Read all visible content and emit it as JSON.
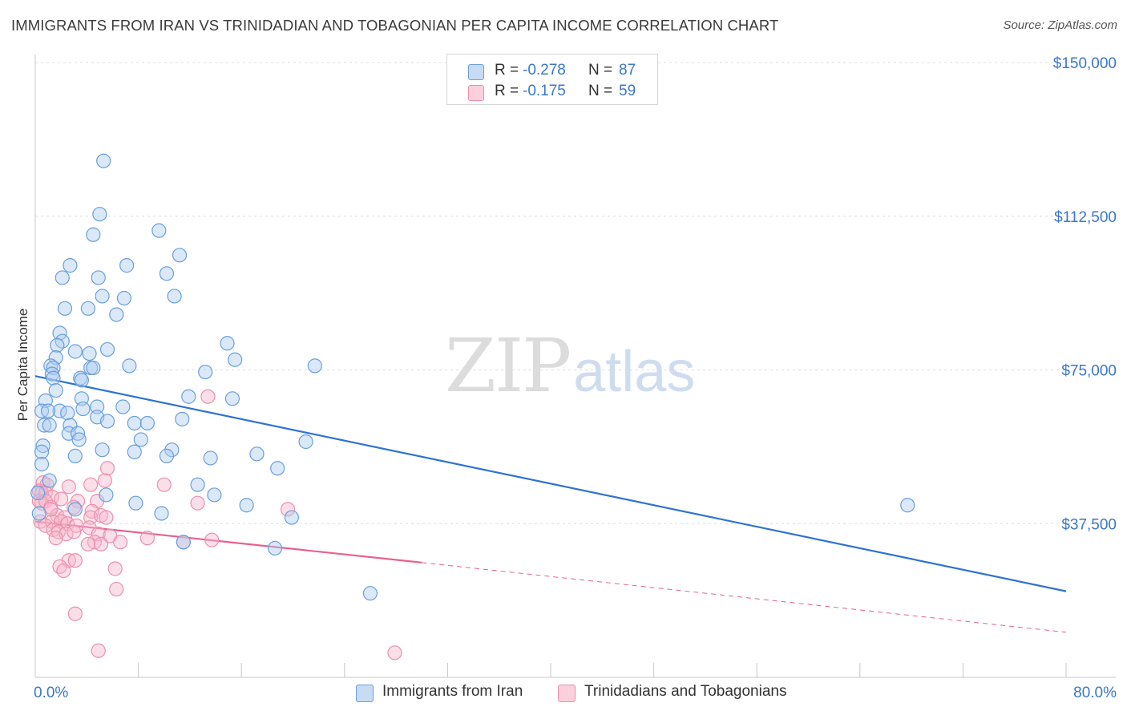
{
  "title": "IMMIGRANTS FROM IRAN VS TRINIDADIAN AND TOBAGONIAN PER CAPITA INCOME CORRELATION CHART",
  "source": "Source: ZipAtlas.com",
  "watermark": {
    "zip": "ZIP",
    "atlas": "atlas"
  },
  "legend": {
    "rows": [
      {
        "r_label": "R =",
        "r_value": "-0.278",
        "n_label": "N =",
        "n_value": "87",
        "color": "#aecbf0"
      },
      {
        "r_label": "R =",
        "r_value": "-0.175",
        "n_label": "N =",
        "n_value": "59",
        "color": "#f7b9cb"
      }
    ]
  },
  "bottom_legend": {
    "series1": "Immigrants from Iran",
    "series2": "Trinidadians and Tobagonians"
  },
  "colors": {
    "iran_fill": "#aecbf0",
    "iran_stroke": "#6a9fdc",
    "iran_line": "#2f72cf",
    "tt_fill": "#f7b9cb",
    "tt_stroke": "#ec8fad",
    "tt_line": "#e5628f",
    "axis_text": "#3b77c9"
  },
  "chart_data": {
    "type": "scatter",
    "title": "IMMIGRANTS FROM IRAN VS TRINIDADIAN AND TOBAGONIAN PER CAPITA INCOME CORRELATION CHART",
    "xlabel": "",
    "ylabel": "Per Capita Income",
    "xlim": [
      0,
      80
    ],
    "ylim": [
      0,
      155000
    ],
    "x_tick_labels": [
      "0.0%",
      "80.0%"
    ],
    "y_ticks": [
      37500,
      75000,
      112500,
      150000
    ],
    "y_tick_labels": [
      "$37,500",
      "$75,000",
      "$112,500",
      "$150,000"
    ],
    "grid": true,
    "series": [
      {
        "name": "Immigrants from Iran",
        "points": [
          [
            5.3,
            126000
          ],
          [
            5.0,
            113000
          ],
          [
            4.5,
            108000
          ],
          [
            9.6,
            109000
          ],
          [
            11.2,
            103000
          ],
          [
            2.7,
            100500
          ],
          [
            7.1,
            100500
          ],
          [
            2.1,
            97500
          ],
          [
            4.9,
            97500
          ],
          [
            10.2,
            98500
          ],
          [
            5.2,
            93000
          ],
          [
            6.9,
            92500
          ],
          [
            10.8,
            93000
          ],
          [
            2.3,
            90000
          ],
          [
            4.1,
            90000
          ],
          [
            6.3,
            88500
          ],
          [
            1.9,
            84000
          ],
          [
            2.1,
            82000
          ],
          [
            1.7,
            81000
          ],
          [
            1.6,
            78000
          ],
          [
            3.1,
            79500
          ],
          [
            4.2,
            79000
          ],
          [
            5.6,
            80000
          ],
          [
            14.9,
            81500
          ],
          [
            1.2,
            76000
          ],
          [
            1.4,
            75500
          ],
          [
            4.3,
            75500
          ],
          [
            4.5,
            75500
          ],
          [
            7.3,
            76000
          ],
          [
            13.2,
            74500
          ],
          [
            15.5,
            77500
          ],
          [
            21.7,
            76000
          ],
          [
            1.3,
            74000
          ],
          [
            1.4,
            73000
          ],
          [
            3.5,
            73000
          ],
          [
            3.6,
            72500
          ],
          [
            11.9,
            68500
          ],
          [
            15.3,
            68000
          ],
          [
            0.8,
            67500
          ],
          [
            1.6,
            70000
          ],
          [
            1.9,
            65000
          ],
          [
            2.5,
            64500
          ],
          [
            3.6,
            68000
          ],
          [
            3.7,
            65500
          ],
          [
            4.8,
            66000
          ],
          [
            6.8,
            66000
          ],
          [
            0.5,
            65000
          ],
          [
            1.0,
            65000
          ],
          [
            2.7,
            61500
          ],
          [
            4.8,
            63500
          ],
          [
            5.6,
            62500
          ],
          [
            7.7,
            62000
          ],
          [
            8.7,
            62000
          ],
          [
            11.4,
            63000
          ],
          [
            0.7,
            61500
          ],
          [
            1.1,
            61500
          ],
          [
            2.6,
            59500
          ],
          [
            3.3,
            59500
          ],
          [
            3.4,
            58000
          ],
          [
            8.2,
            58000
          ],
          [
            21.0,
            57500
          ],
          [
            0.6,
            56500
          ],
          [
            5.2,
            55500
          ],
          [
            7.7,
            55000
          ],
          [
            10.6,
            55500
          ],
          [
            0.5,
            55000
          ],
          [
            3.1,
            54000
          ],
          [
            10.2,
            54000
          ],
          [
            13.6,
            53500
          ],
          [
            17.2,
            54500
          ],
          [
            18.8,
            51000
          ],
          [
            0.5,
            52000
          ],
          [
            1.1,
            48000
          ],
          [
            0.2,
            45000
          ],
          [
            5.5,
            44500
          ],
          [
            12.6,
            47000
          ],
          [
            13.9,
            44500
          ],
          [
            7.8,
            42500
          ],
          [
            16.4,
            42000
          ],
          [
            3.1,
            41000
          ],
          [
            9.8,
            40000
          ],
          [
            0.3,
            40000
          ],
          [
            19.9,
            39000
          ],
          [
            11.5,
            33000
          ],
          [
            18.6,
            31500
          ],
          [
            26.0,
            20500
          ],
          [
            67.7,
            42000
          ]
        ],
        "trend": {
          "x0": 0,
          "y0": 73500,
          "x1": 80,
          "y1": 21000
        }
      },
      {
        "name": "Trinidadians and Tobagonians",
        "points": [
          [
            13.4,
            68500
          ],
          [
            5.6,
            51000
          ],
          [
            0.6,
            47500
          ],
          [
            0.9,
            47000
          ],
          [
            2.6,
            46500
          ],
          [
            4.3,
            47000
          ],
          [
            5.4,
            48000
          ],
          [
            10.0,
            47000
          ],
          [
            0.3,
            45500
          ],
          [
            0.5,
            45000
          ],
          [
            0.8,
            45000
          ],
          [
            1.3,
            44000
          ],
          [
            0.3,
            43000
          ],
          [
            0.5,
            42500
          ],
          [
            0.8,
            43000
          ],
          [
            2.0,
            43500
          ],
          [
            3.3,
            43000
          ],
          [
            4.8,
            43000
          ],
          [
            12.6,
            42500
          ],
          [
            1.2,
            41500
          ],
          [
            3.0,
            41500
          ],
          [
            4.4,
            40500
          ],
          [
            19.6,
            41000
          ],
          [
            1.7,
            39500
          ],
          [
            2.3,
            39000
          ],
          [
            4.3,
            39000
          ],
          [
            5.1,
            39500
          ],
          [
            5.5,
            39000
          ],
          [
            0.4,
            38000
          ],
          [
            1.3,
            38000
          ],
          [
            2.0,
            38000
          ],
          [
            2.5,
            37500
          ],
          [
            0.8,
            37000
          ],
          [
            3.2,
            37000
          ],
          [
            4.2,
            36500
          ],
          [
            1.4,
            36000
          ],
          [
            1.8,
            35500
          ],
          [
            2.4,
            35000
          ],
          [
            3.0,
            35500
          ],
          [
            4.9,
            35000
          ],
          [
            5.8,
            34500
          ],
          [
            8.7,
            34000
          ],
          [
            1.6,
            34000
          ],
          [
            4.6,
            33000
          ],
          [
            6.6,
            33000
          ],
          [
            4.1,
            32500
          ],
          [
            5.1,
            32500
          ],
          [
            11.5,
            33000
          ],
          [
            13.7,
            33500
          ],
          [
            2.6,
            28500
          ],
          [
            3.1,
            28500
          ],
          [
            1.9,
            27000
          ],
          [
            2.2,
            26000
          ],
          [
            6.2,
            26500
          ],
          [
            6.3,
            21500
          ],
          [
            3.1,
            15500
          ],
          [
            4.9,
            6500
          ],
          [
            27.9,
            6000
          ],
          [
            1.2,
            41000
          ]
        ],
        "trend": {
          "x0": 0,
          "y0": 38000,
          "x1": 30,
          "y1": 28000
        },
        "trend_extension": {
          "x0": 30,
          "y0": 28000,
          "x1": 80,
          "y1": 11000
        }
      }
    ]
  }
}
